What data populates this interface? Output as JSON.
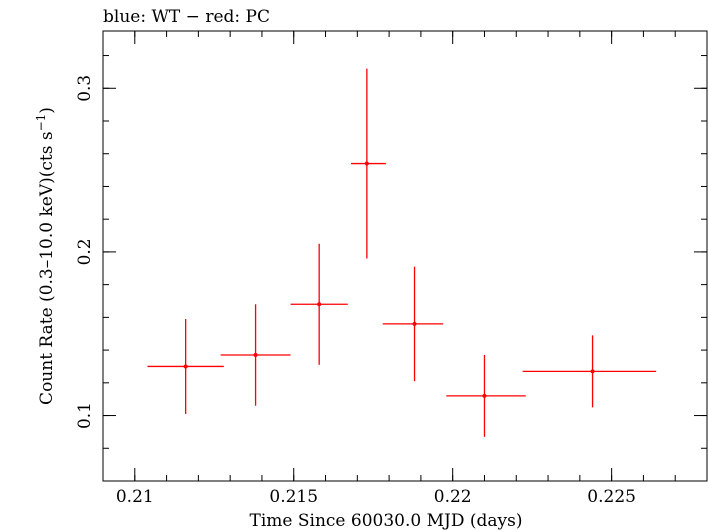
{
  "header": {
    "title": "blue: WT − red: PC"
  },
  "chart_data": {
    "type": "scatter",
    "title": "blue: WT − red: PC",
    "xlabel": "Time Since 60030.0 MJD (days)",
    "ylabel_main": "Count Rate (0.3–10.0 keV)(cts s",
    "ylabel_sup": "−1",
    "ylabel_close": ")",
    "xlim": [
      0.209,
      0.228
    ],
    "ylim": [
      0.06,
      0.335
    ],
    "xticks": [
      {
        "v": 0.21,
        "label": "0.21"
      },
      {
        "v": 0.215,
        "label": "0.215"
      },
      {
        "v": 0.22,
        "label": "0.22"
      },
      {
        "v": 0.225,
        "label": "0.225"
      }
    ],
    "yticks": [
      {
        "v": 0.1,
        "label": "0.1"
      },
      {
        "v": 0.2,
        "label": "0.2"
      },
      {
        "v": 0.3,
        "label": "0.3"
      }
    ],
    "x_minor_step": 0.001,
    "y_minor_step": 0.02,
    "series": [
      {
        "color": "#ff0000",
        "points": [
          {
            "x": 0.2116,
            "xlo": 0.2104,
            "xhi": 0.2128,
            "y": 0.13,
            "ylo": 0.101,
            "yhi": 0.159
          },
          {
            "x": 0.2138,
            "xlo": 0.2127,
            "xhi": 0.2149,
            "y": 0.137,
            "ylo": 0.106,
            "yhi": 0.168
          },
          {
            "x": 0.2158,
            "xlo": 0.2149,
            "xhi": 0.2167,
            "y": 0.168,
            "ylo": 0.131,
            "yhi": 0.205
          },
          {
            "x": 0.2173,
            "xlo": 0.2168,
            "xhi": 0.2179,
            "y": 0.254,
            "ylo": 0.196,
            "yhi": 0.312
          },
          {
            "x": 0.2188,
            "xlo": 0.2178,
            "xhi": 0.2197,
            "y": 0.156,
            "ylo": 0.121,
            "yhi": 0.191
          },
          {
            "x": 0.221,
            "xlo": 0.2198,
            "xhi": 0.2223,
            "y": 0.112,
            "ylo": 0.087,
            "yhi": 0.137
          },
          {
            "x": 0.2244,
            "xlo": 0.2222,
            "xhi": 0.2264,
            "y": 0.127,
            "ylo": 0.105,
            "yhi": 0.149
          }
        ]
      }
    ]
  }
}
